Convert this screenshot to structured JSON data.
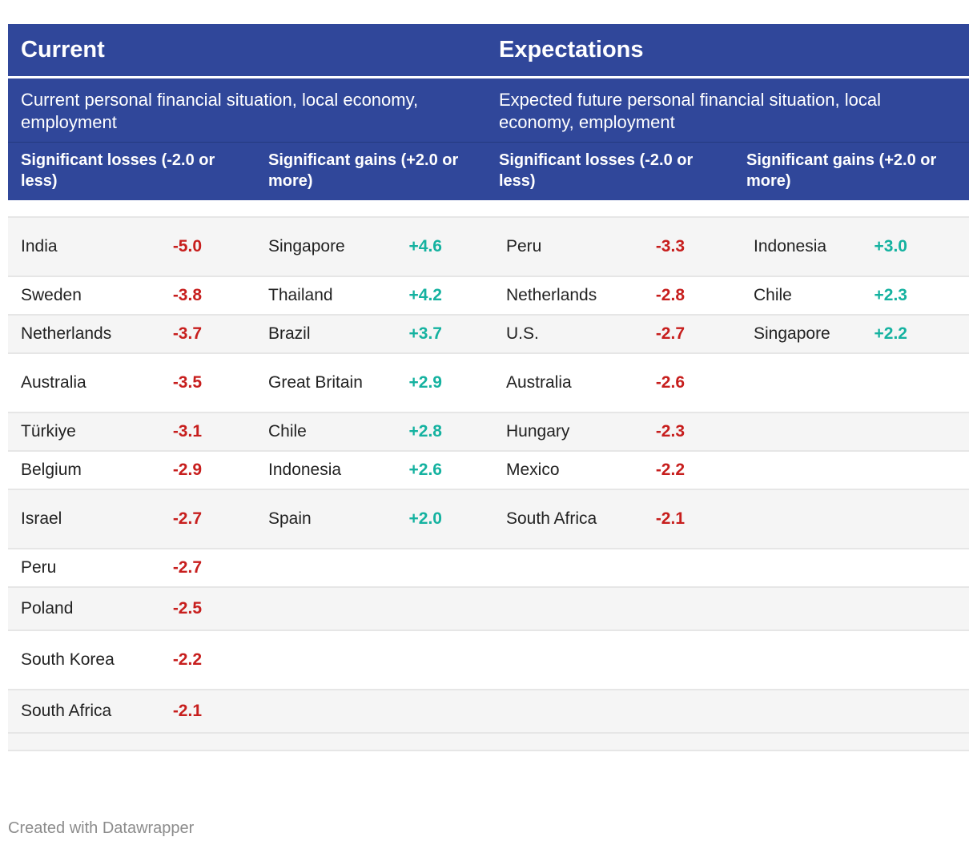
{
  "header": {
    "group1_title": "Current",
    "group2_title": "Expectations",
    "group1_subtitle": "Current personal financial situation, local economy, employment",
    "group2_subtitle": "Expected future personal financial situation, local economy, employment",
    "col1": "Significant losses (-2.0 or less)",
    "col2": "Significant gains (+2.0 or more)",
    "col3": "Significant losses (-2.0 or less)",
    "col4": "Significant gains (+2.0 or more)"
  },
  "rows": [
    {
      "c1_name": "India",
      "c1_val": "-5.0",
      "c2_name": "Singapore",
      "c2_val": "+4.6",
      "c3_name": "Peru",
      "c3_val": "-3.3",
      "c4_name": "Indonesia",
      "c4_val": "+3.0"
    },
    {
      "c1_name": "Sweden",
      "c1_val": "-3.8",
      "c2_name": "Thailand",
      "c2_val": "+4.2",
      "c3_name": "Netherlands",
      "c3_val": "-2.8",
      "c4_name": "Chile",
      "c4_val": "+2.3"
    },
    {
      "c1_name": "Netherlands",
      "c1_val": "-3.7",
      "c2_name": "Brazil",
      "c2_val": "+3.7",
      "c3_name": "U.S.",
      "c3_val": "-2.7",
      "c4_name": "Singapore",
      "c4_val": "+2.2"
    },
    {
      "c1_name": "Australia",
      "c1_val": "-3.5",
      "c2_name": "Great Britain",
      "c2_val": "+2.9",
      "c3_name": "Australia",
      "c3_val": "-2.6",
      "c4_name": "",
      "c4_val": ""
    },
    {
      "c1_name": "Türkiye",
      "c1_val": "-3.1",
      "c2_name": "Chile",
      "c2_val": "+2.8",
      "c3_name": "Hungary",
      "c3_val": "-2.3",
      "c4_name": "",
      "c4_val": ""
    },
    {
      "c1_name": "Belgium",
      "c1_val": "-2.9",
      "c2_name": "Indonesia",
      "c2_val": "+2.6",
      "c3_name": "Mexico",
      "c3_val": "-2.2",
      "c4_name": "",
      "c4_val": ""
    },
    {
      "c1_name": "Israel",
      "c1_val": "-2.7",
      "c2_name": "Spain",
      "c2_val": "+2.0",
      "c3_name": "South Africa",
      "c3_val": "-2.1",
      "c4_name": "",
      "c4_val": ""
    },
    {
      "c1_name": "Peru",
      "c1_val": "-2.7",
      "c2_name": "",
      "c2_val": "",
      "c3_name": "",
      "c3_val": "",
      "c4_name": "",
      "c4_val": ""
    },
    {
      "c1_name": "Poland",
      "c1_val": "-2.5",
      "c2_name": "",
      "c2_val": "",
      "c3_name": "",
      "c3_val": "",
      "c4_name": "",
      "c4_val": ""
    },
    {
      "c1_name": "South Korea",
      "c1_val": "-2.2",
      "c2_name": "",
      "c2_val": "",
      "c3_name": "",
      "c3_val": "",
      "c4_name": "",
      "c4_val": ""
    },
    {
      "c1_name": "South Africa",
      "c1_val": "-2.1",
      "c2_name": "",
      "c2_val": "",
      "c3_name": "",
      "c3_val": "",
      "c4_name": "",
      "c4_val": ""
    }
  ],
  "footer": {
    "credit": "Created with Datawrapper"
  },
  "colors": {
    "header_bg": "#30479a",
    "negative": "#c71e1d",
    "positive": "#15b2a0"
  }
}
